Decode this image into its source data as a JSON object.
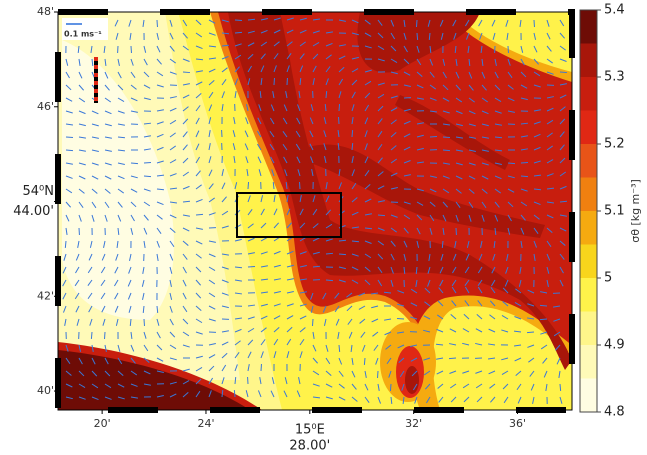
{
  "chart_data": {
    "type": "contour",
    "xlim": [
      18.3,
      38.1
    ],
    "ylim": [
      39.6,
      48
    ],
    "xticks": [
      {
        "value": 20,
        "label": "20'"
      },
      {
        "value": 24,
        "label": "24'"
      },
      {
        "value": 28,
        "label": "28.00'"
      },
      {
        "value": 32,
        "label": "32'"
      },
      {
        "value": 36,
        "label": "36'"
      }
    ],
    "yticks": [
      {
        "value": 48,
        "label": "48'"
      },
      {
        "value": 46,
        "label": "46'"
      },
      {
        "value": 44,
        "label": "44.00'"
      },
      {
        "value": 42,
        "label": "42'"
      },
      {
        "value": 40,
        "label": "40'"
      }
    ],
    "x_degree_label": "15⁰E",
    "y_degree_label": "54⁰N",
    "vector_scale_label": "0.1 ms⁻¹",
    "colorbar": {
      "label": "σθ [kg m⁻³]",
      "levels": [
        4.8,
        4.85,
        4.9,
        4.95,
        5,
        5.05,
        5.1,
        5.15,
        5.2,
        5.25,
        5.3,
        5.35,
        5.4
      ],
      "colors": [
        "#fffde2",
        "#fffab8",
        "#fff68a",
        "#fff24a",
        "#f8d51c",
        "#f5aa10",
        "#f08010",
        "#e85418",
        "#e02814",
        "#c81e0e",
        "#a8160a",
        "#6e0c06"
      ],
      "ticks": [
        5.4,
        5.3,
        5.2,
        5.1,
        5,
        4.9,
        4.8
      ]
    }
  }
}
